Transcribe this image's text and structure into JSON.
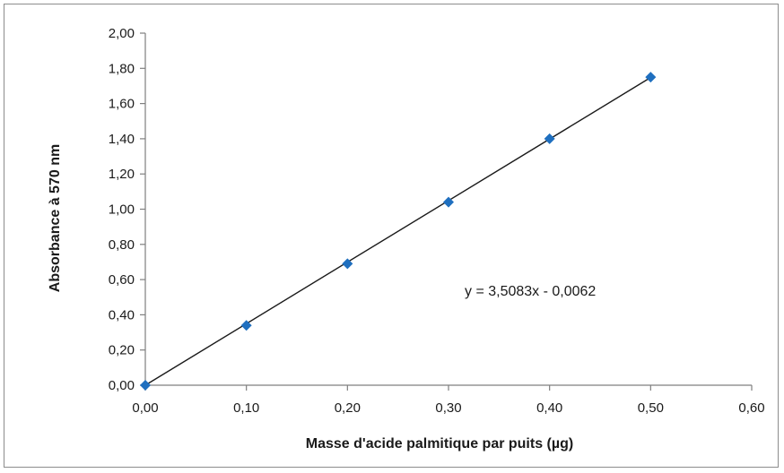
{
  "chart_data": {
    "type": "scatter",
    "title": "",
    "xlabel": "Masse d'acide palmitique par puits (µg)",
    "ylabel": "Absorbance à 570 nm",
    "xlim": [
      0,
      0.6
    ],
    "ylim": [
      0,
      2.0
    ],
    "x_ticks": [
      "0,00",
      "0,10",
      "0,20",
      "0,30",
      "0,40",
      "0,50",
      "0,60"
    ],
    "y_ticks": [
      "0,00",
      "0,20",
      "0,40",
      "0,60",
      "0,80",
      "1,00",
      "1,20",
      "1,40",
      "1,60",
      "1,80",
      "2,00"
    ],
    "grid": false,
    "legend": "none",
    "series": [
      {
        "x": [
          0.0,
          0.1,
          0.2,
          0.3,
          0.4,
          0.5
        ],
        "y": [
          0.0,
          0.34,
          0.69,
          1.04,
          1.4,
          1.75
        ],
        "color": "#1f6fbf",
        "marker": "diamond"
      }
    ],
    "trendline": {
      "equation": "y = 3,5083x - 0,0062",
      "slope": 3.5083,
      "intercept": -0.0062,
      "x_range": [
        0.0,
        0.5
      ],
      "color": "#1a1a1a"
    }
  }
}
